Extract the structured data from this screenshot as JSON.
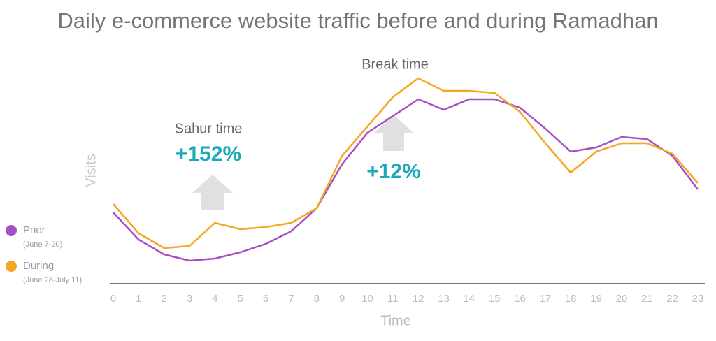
{
  "chart_data": {
    "type": "line",
    "title": "Daily e-commerce website traffic before and during Ramadhan",
    "x_label": "Time",
    "y_label": "Visits",
    "categories": [
      "0",
      "1",
      "2",
      "3",
      "4",
      "5",
      "6",
      "7",
      "8",
      "9",
      "10",
      "11",
      "12",
      "13",
      "14",
      "15",
      "16",
      "17",
      "18",
      "19",
      "20",
      "21",
      "22",
      "23"
    ],
    "ylim": [
      0,
      100
    ],
    "series": [
      {
        "name": "Prior",
        "description": "(June 7-20)",
        "color": "#a64fc4",
        "values": [
          34,
          21,
          14,
          11,
          12,
          15,
          19,
          25,
          36,
          57,
          72,
          80,
          88,
          83,
          88,
          88,
          84,
          74,
          63,
          65,
          70,
          69,
          61,
          45
        ]
      },
      {
        "name": "During",
        "description": "(June 28-July 11)",
        "color": "#f5a623",
        "values": [
          38,
          24,
          17,
          18,
          29,
          26,
          27,
          29,
          36,
          61,
          75,
          89,
          98,
          92,
          92,
          91,
          82,
          67,
          53,
          63,
          67,
          67,
          62,
          48
        ]
      }
    ],
    "annotations": [
      {
        "label": "Sahur time",
        "value_label": "+152%"
      },
      {
        "label": "Break time",
        "value_label": "+12%"
      }
    ],
    "legend": "left"
  }
}
